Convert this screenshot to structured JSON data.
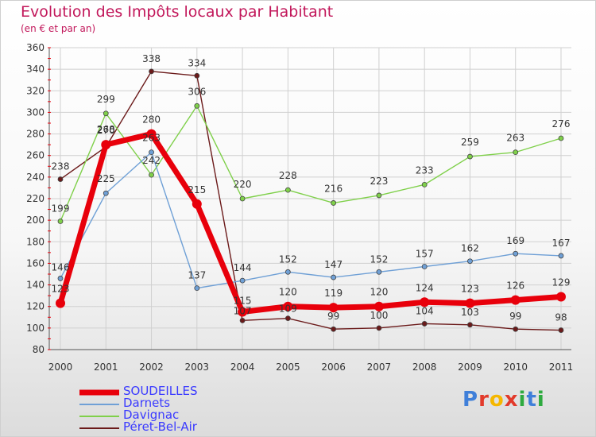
{
  "title": "Evolution des Impôts locaux par Habitant",
  "subtitle": "(en € et par an)",
  "logo": {
    "text": "Proxiti",
    "letters": [
      "P",
      "r",
      "o",
      "x",
      "i",
      "t",
      "i"
    ],
    "colors": [
      "#3f7fd9",
      "#e23a2b",
      "#f5b700",
      "#e23a2b",
      "#2eaa3f",
      "#3f7fd9",
      "#2eaa3f"
    ]
  },
  "chart_data": {
    "type": "line",
    "title": "Evolution des Impôts locaux par Habitant",
    "subtitle": "(en € et par an)",
    "xlabel": "",
    "ylabel": "",
    "x": [
      "2000",
      "2001",
      "2002",
      "2003",
      "2004",
      "2005",
      "2006",
      "2007",
      "2008",
      "2009",
      "2010",
      "2011"
    ],
    "ylim": [
      80,
      360
    ],
    "yticks": [
      80,
      100,
      120,
      140,
      160,
      180,
      200,
      220,
      240,
      260,
      280,
      300,
      320,
      340,
      360
    ],
    "grid": true,
    "legend_position": "bottom-left",
    "series": [
      {
        "name": "Péret-Bel-Air",
        "color": "#6b1a1a",
        "values": [
          238,
          268,
          338,
          334,
          107,
          109,
          99,
          100,
          104,
          103,
          99,
          98
        ],
        "labels": [
          "238",
          "268",
          "338",
          "334",
          "107",
          "109",
          "99",
          "100",
          "104",
          "103",
          "99",
          "98"
        ]
      },
      {
        "name": "Davignac",
        "color": "#7fd04a",
        "values": [
          199,
          299,
          242,
          306,
          220,
          228,
          216,
          223,
          233,
          259,
          263,
          276
        ],
        "labels": [
          "199",
          "299",
          "242",
          "306",
          "220",
          "228",
          "216",
          "223",
          "233",
          "259",
          "263",
          "276"
        ]
      },
      {
        "name": "Darnets",
        "color": "#6fa0d6",
        "values": [
          146,
          225,
          263,
          137,
          144,
          152,
          147,
          152,
          157,
          162,
          169,
          167
        ],
        "labels": [
          "146",
          "225",
          "263",
          "137",
          "144",
          "152",
          "147",
          "152",
          "157",
          "162",
          "169",
          "167"
        ]
      },
      {
        "name": "SOUDEILLES",
        "color": "#e8000b",
        "values": [
          123,
          270,
          280,
          215,
          115,
          120,
          119,
          120,
          124,
          123,
          126,
          129
        ],
        "labels": [
          "123",
          "270",
          "280",
          "215",
          "115",
          "120",
          "119",
          "120",
          "124",
          "123",
          "126",
          "129"
        ]
      }
    ],
    "legend": [
      "SOUDEILLES",
      "Darnets",
      "Davignac",
      "Péret-Bel-Air"
    ]
  }
}
